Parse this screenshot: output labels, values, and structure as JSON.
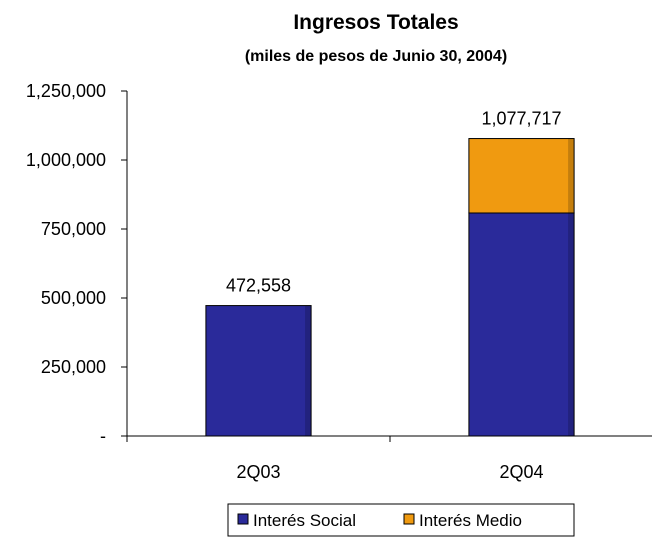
{
  "chart_data": {
    "type": "bar",
    "stacked": true,
    "title": "Ingresos Totales",
    "subtitle": "(miles de pesos de Junio 30, 2004)",
    "categories": [
      "2Q03",
      "2Q04"
    ],
    "series": [
      {
        "name": "Interés Social",
        "values": [
          472558,
          808000
        ],
        "color": "#2a2a9a"
      },
      {
        "name": "Interés Medio",
        "values": [
          0,
          269717
        ],
        "color": "#f09a10"
      }
    ],
    "totals": [
      "472,558",
      "1,077,717"
    ],
    "ylim": [
      0,
      1250000
    ],
    "yticks": [
      0,
      250000,
      500000,
      750000,
      1000000,
      1250000
    ],
    "ytick_labels": [
      "-",
      "250,000",
      "500,000",
      "750,000",
      "1,000,000",
      "1,250,000"
    ],
    "grid": false,
    "legend_position": "bottom"
  }
}
